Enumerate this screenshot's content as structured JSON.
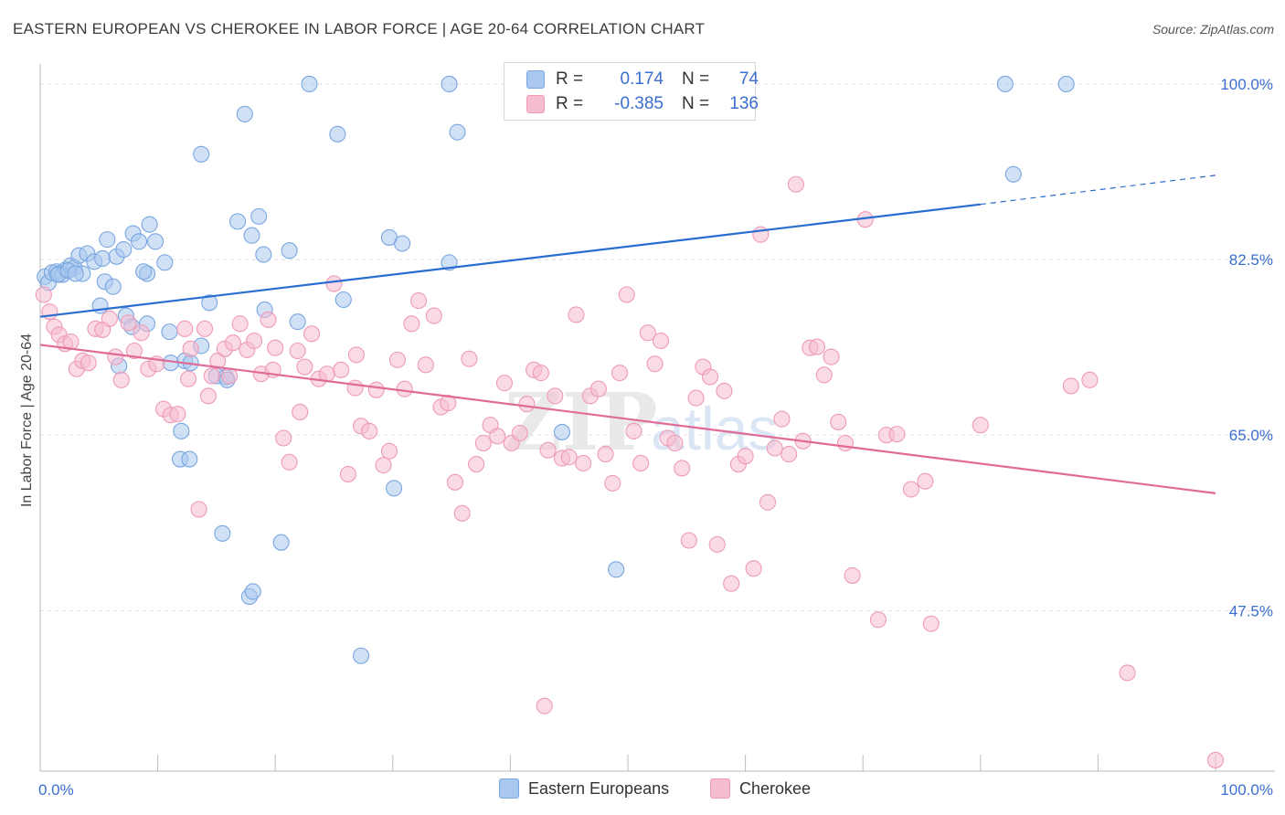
{
  "header": {
    "title": "EASTERN EUROPEAN VS CHEROKEE IN LABOR FORCE | AGE 20-64 CORRELATION CHART",
    "source": "Source: ZipAtlas.com"
  },
  "legend_top": {
    "rows": [
      {
        "r_label": "R =",
        "r_value": "0.174",
        "n_label": "N =",
        "n_value": "74"
      },
      {
        "r_label": "R =",
        "r_value": "-0.385",
        "n_label": "N =",
        "n_value": "136"
      }
    ]
  },
  "legend_bottom": {
    "items": [
      {
        "label": "Eastern Europeans"
      },
      {
        "label": "Cherokee"
      }
    ]
  },
  "chart_data": {
    "type": "scatter",
    "title": "EASTERN EUROPEAN VS CHEROKEE IN LABOR FORCE | AGE 20-64 CORRELATION CHART",
    "xlabel": "",
    "ylabel": "In Labor Force | Age 20-64",
    "xlim": [
      0,
      100
    ],
    "ylim": [
      31.5,
      102
    ],
    "x_tick_labels": [
      "0.0%",
      "100.0%"
    ],
    "y_ticks": [
      47.5,
      65.0,
      82.5,
      100.0
    ],
    "y_tick_labels": [
      "47.5%",
      "65.0%",
      "82.5%",
      "100.0%"
    ],
    "grid": true,
    "legend_position": "top-center",
    "watermark": "ZIPatlas",
    "colors": {
      "blue_fill": "#aac8ef",
      "blue_stroke": "#7aa6e0",
      "blue_line": "#2a6dd0",
      "pink_fill": "#f5bcd0",
      "pink_stroke": "#ee9ab8",
      "pink_line": "#e06a98",
      "tick_label": "#3a6fd0"
    },
    "series": [
      {
        "name": "Eastern Europeans",
        "color": "#aac8ef",
        "trend": {
          "x": [
            0,
            80
          ],
          "y": [
            76.8,
            88.0
          ],
          "dash_extension_to": [
            100,
            90.9
          ]
        },
        "points": [
          [
            0.4,
            80.8
          ],
          [
            0.7,
            80.2
          ],
          [
            1.0,
            81.2
          ],
          [
            1.4,
            81.3
          ],
          [
            1.6,
            81.1
          ],
          [
            1.9,
            81.0
          ],
          [
            2.2,
            81.5
          ],
          [
            2.6,
            81.9
          ],
          [
            2.9,
            81.7
          ],
          [
            3.3,
            82.9
          ],
          [
            3.6,
            81.1
          ],
          [
            4.0,
            83.1
          ],
          [
            4.6,
            82.3
          ],
          [
            5.3,
            82.6
          ],
          [
            5.7,
            84.5
          ],
          [
            6.5,
            82.8
          ],
          [
            7.1,
            83.5
          ],
          [
            7.9,
            85.1
          ],
          [
            8.4,
            84.3
          ],
          [
            9.3,
            86.0
          ],
          [
            9.8,
            84.3
          ],
          [
            10.6,
            82.2
          ],
          [
            9.1,
            81.1
          ],
          [
            8.8,
            81.3
          ],
          [
            5.5,
            80.3
          ],
          [
            6.2,
            79.8
          ],
          [
            5.1,
            77.9
          ],
          [
            7.3,
            76.9
          ],
          [
            7.8,
            75.8
          ],
          [
            9.1,
            76.1
          ],
          [
            11.0,
            75.3
          ],
          [
            12.3,
            72.4
          ],
          [
            12.8,
            72.2
          ],
          [
            13.7,
            73.9
          ],
          [
            11.1,
            72.2
          ],
          [
            6.7,
            71.9
          ],
          [
            15.0,
            70.9
          ],
          [
            16.8,
            86.3
          ],
          [
            18.0,
            84.9
          ],
          [
            19.0,
            83.0
          ],
          [
            21.2,
            83.4
          ],
          [
            17.4,
            97.0
          ],
          [
            13.7,
            93.0
          ],
          [
            18.6,
            86.8
          ],
          [
            19.1,
            77.5
          ],
          [
            21.9,
            76.3
          ],
          [
            14.4,
            78.2
          ],
          [
            22.9,
            100.0
          ],
          [
            25.3,
            95.0
          ],
          [
            25.8,
            78.5
          ],
          [
            34.8,
            100.0
          ],
          [
            35.5,
            95.2
          ],
          [
            29.7,
            84.7
          ],
          [
            30.8,
            84.1
          ],
          [
            34.8,
            82.2
          ],
          [
            15.8,
            70.8
          ],
          [
            15.9,
            70.5
          ],
          [
            12.0,
            65.4
          ],
          [
            11.9,
            62.6
          ],
          [
            12.7,
            62.6
          ],
          [
            15.5,
            55.2
          ],
          [
            20.5,
            54.3
          ],
          [
            17.8,
            48.9
          ],
          [
            18.1,
            49.4
          ],
          [
            27.3,
            43.0
          ],
          [
            30.1,
            59.7
          ],
          [
            44.4,
            65.3
          ],
          [
            49.0,
            51.6
          ],
          [
            82.1,
            100.0
          ],
          [
            87.3,
            100.0
          ],
          [
            82.8,
            91.0
          ],
          [
            1.5,
            81.0
          ],
          [
            2.4,
            81.4
          ],
          [
            3.0,
            81.1
          ]
        ]
      },
      {
        "name": "Cherokee",
        "color": "#f5bcd0",
        "trend": {
          "x": [
            0,
            100
          ],
          "y": [
            74.0,
            59.2
          ]
        },
        "points": [
          [
            0.3,
            79.0
          ],
          [
            0.8,
            77.3
          ],
          [
            1.2,
            75.8
          ],
          [
            1.6,
            75.0
          ],
          [
            2.1,
            74.1
          ],
          [
            2.6,
            74.3
          ],
          [
            3.1,
            71.6
          ],
          [
            3.6,
            72.4
          ],
          [
            4.1,
            72.2
          ],
          [
            4.7,
            75.6
          ],
          [
            5.3,
            75.5
          ],
          [
            5.9,
            76.6
          ],
          [
            6.4,
            72.8
          ],
          [
            6.9,
            70.5
          ],
          [
            7.5,
            76.2
          ],
          [
            8.0,
            73.4
          ],
          [
            8.6,
            75.2
          ],
          [
            9.2,
            71.6
          ],
          [
            9.9,
            72.1
          ],
          [
            10.5,
            67.6
          ],
          [
            11.1,
            67.0
          ],
          [
            11.7,
            67.1
          ],
          [
            12.3,
            75.6
          ],
          [
            12.8,
            73.6
          ],
          [
            13.5,
            57.6
          ],
          [
            14.0,
            75.6
          ],
          [
            14.6,
            70.9
          ],
          [
            15.1,
            72.4
          ],
          [
            15.7,
            73.6
          ],
          [
            16.4,
            74.2
          ],
          [
            17.0,
            76.1
          ],
          [
            17.6,
            73.5
          ],
          [
            18.2,
            74.4
          ],
          [
            18.8,
            71.1
          ],
          [
            19.4,
            76.5
          ],
          [
            20.0,
            73.7
          ],
          [
            20.7,
            64.7
          ],
          [
            21.2,
            62.3
          ],
          [
            21.9,
            73.4
          ],
          [
            22.5,
            71.8
          ],
          [
            23.1,
            75.1
          ],
          [
            23.7,
            70.6
          ],
          [
            24.4,
            71.1
          ],
          [
            25.0,
            80.1
          ],
          [
            25.6,
            71.5
          ],
          [
            26.2,
            61.1
          ],
          [
            26.8,
            69.7
          ],
          [
            27.3,
            65.9
          ],
          [
            28.0,
            65.4
          ],
          [
            28.6,
            69.5
          ],
          [
            29.2,
            62.0
          ],
          [
            29.7,
            63.4
          ],
          [
            30.4,
            72.5
          ],
          [
            31.0,
            69.6
          ],
          [
            31.6,
            76.1
          ],
          [
            32.2,
            78.4
          ],
          [
            32.8,
            72.0
          ],
          [
            33.5,
            76.9
          ],
          [
            34.1,
            67.8
          ],
          [
            34.7,
            68.2
          ],
          [
            35.3,
            60.3
          ],
          [
            35.9,
            57.2
          ],
          [
            36.5,
            72.6
          ],
          [
            37.1,
            62.1
          ],
          [
            37.7,
            64.2
          ],
          [
            38.3,
            66.0
          ],
          [
            38.9,
            64.9
          ],
          [
            39.5,
            70.2
          ],
          [
            40.1,
            64.2
          ],
          [
            40.8,
            65.2
          ],
          [
            41.4,
            68.1
          ],
          [
            42.0,
            71.5
          ],
          [
            42.6,
            71.2
          ],
          [
            43.2,
            63.5
          ],
          [
            43.8,
            68.9
          ],
          [
            44.4,
            62.7
          ],
          [
            45.0,
            62.8
          ],
          [
            45.6,
            77.0
          ],
          [
            46.2,
            62.2
          ],
          [
            46.8,
            68.9
          ],
          [
            47.5,
            69.6
          ],
          [
            48.1,
            63.1
          ],
          [
            48.7,
            60.2
          ],
          [
            49.3,
            71.2
          ],
          [
            49.9,
            79.0
          ],
          [
            50.5,
            65.4
          ],
          [
            51.1,
            62.2
          ],
          [
            51.7,
            75.2
          ],
          [
            52.3,
            72.1
          ],
          [
            52.8,
            74.4
          ],
          [
            53.4,
            64.7
          ],
          [
            54.0,
            64.2
          ],
          [
            54.6,
            61.7
          ],
          [
            55.2,
            54.5
          ],
          [
            55.8,
            68.7
          ],
          [
            56.4,
            71.8
          ],
          [
            57.0,
            70.8
          ],
          [
            57.6,
            54.1
          ],
          [
            58.2,
            69.4
          ],
          [
            58.8,
            50.2
          ],
          [
            59.4,
            62.1
          ],
          [
            60.0,
            62.9
          ],
          [
            60.7,
            51.7
          ],
          [
            61.3,
            85.0
          ],
          [
            61.9,
            58.3
          ],
          [
            62.5,
            63.7
          ],
          [
            63.1,
            66.6
          ],
          [
            63.7,
            63.1
          ],
          [
            64.3,
            90.0
          ],
          [
            64.9,
            64.4
          ],
          [
            65.5,
            73.7
          ],
          [
            66.1,
            73.8
          ],
          [
            66.7,
            71.0
          ],
          [
            67.3,
            72.8
          ],
          [
            67.9,
            66.3
          ],
          [
            68.5,
            64.2
          ],
          [
            69.1,
            51.0
          ],
          [
            70.2,
            86.5
          ],
          [
            71.3,
            46.6
          ],
          [
            72.0,
            65.0
          ],
          [
            72.9,
            65.1
          ],
          [
            74.1,
            59.6
          ],
          [
            75.3,
            60.4
          ],
          [
            75.8,
            46.2
          ],
          [
            80.0,
            66.0
          ],
          [
            87.7,
            69.9
          ],
          [
            89.3,
            70.5
          ],
          [
            92.5,
            41.3
          ],
          [
            100.0,
            32.6
          ],
          [
            42.9,
            38.0
          ],
          [
            19.8,
            71.5
          ],
          [
            14.3,
            68.9
          ],
          [
            22.1,
            67.3
          ],
          [
            26.9,
            73.0
          ],
          [
            12.6,
            70.6
          ],
          [
            16.1,
            70.9
          ]
        ]
      }
    ]
  }
}
